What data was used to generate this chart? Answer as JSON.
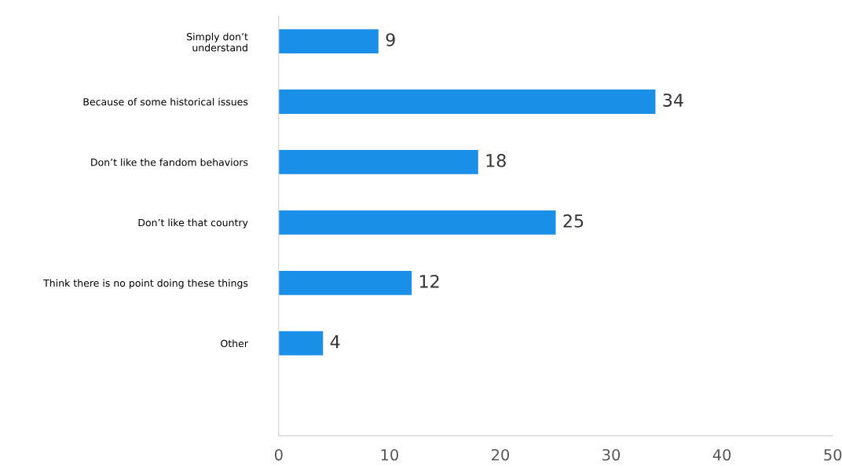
{
  "chart_data": {
    "type": "bar",
    "orientation": "horizontal",
    "categories": [
      "Simply don’t\nunderstand",
      "Because of some historical issues",
      "Don’t like the fandom behaviors",
      "Don’t like that country",
      "Think there is no point doing these things",
      "Other"
    ],
    "values": [
      9,
      34,
      18,
      25,
      12,
      4
    ],
    "color": "#1a8fe8",
    "xlim": [
      0,
      50
    ],
    "xticks": [
      0,
      10,
      20,
      30,
      40,
      50
    ],
    "grid": false,
    "legend": false,
    "data_labels": true
  }
}
